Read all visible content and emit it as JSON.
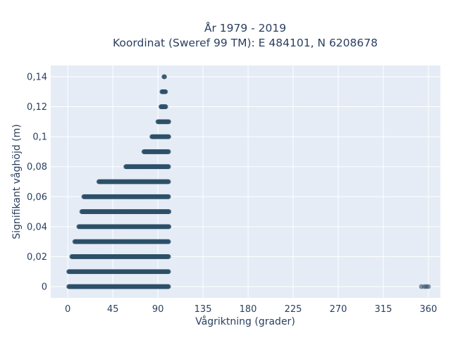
{
  "chart_data": {
    "type": "scatter",
    "title_line1": "År 1979 - 2019",
    "title_line2": "Koordinat (Sweref 99 TM): E 484101, N 6208678",
    "xlabel": "Vågriktning (grader)",
    "ylabel": "Signifikant våghöjd (m)",
    "xlim": [
      -17,
      372
    ],
    "ylim": [
      -0.0075,
      0.1475
    ],
    "x_ticks": [
      0,
      45,
      90,
      135,
      180,
      225,
      270,
      315,
      360
    ],
    "x_tick_labels": [
      "0",
      "45",
      "90",
      "135",
      "180",
      "225",
      "270",
      "315",
      "360"
    ],
    "y_ticks": [
      0,
      0.02,
      0.04,
      0.06,
      0.08,
      0.1,
      0.12,
      0.14
    ],
    "y_tick_labels": [
      "0",
      "0,02",
      "0,04",
      "0,06",
      "0,08",
      "0,1",
      "0,12",
      "0,14"
    ],
    "grid": true,
    "marker_color": "#2e5068",
    "background_color": "#e5ecf6",
    "bands": [
      {
        "y": 0.0,
        "x_min": 1,
        "x_max": 101
      },
      {
        "y": 0.01,
        "x_min": 1,
        "x_max": 101
      },
      {
        "y": 0.02,
        "x_min": 4,
        "x_max": 101
      },
      {
        "y": 0.03,
        "x_min": 7,
        "x_max": 101
      },
      {
        "y": 0.04,
        "x_min": 11,
        "x_max": 101
      },
      {
        "y": 0.05,
        "x_min": 14,
        "x_max": 101
      },
      {
        "y": 0.06,
        "x_min": 16,
        "x_max": 101
      },
      {
        "y": 0.07,
        "x_min": 31,
        "x_max": 101
      },
      {
        "y": 0.08,
        "x_min": 58,
        "x_max": 101
      },
      {
        "y": 0.09,
        "x_min": 76,
        "x_max": 101
      },
      {
        "y": 0.1,
        "x_min": 84,
        "x_max": 101
      },
      {
        "y": 0.11,
        "x_min": 90,
        "x_max": 101
      },
      {
        "y": 0.12,
        "x_min": 93,
        "x_max": 98
      },
      {
        "y": 0.13,
        "x_min": 94,
        "x_max": 98
      },
      {
        "y": 0.14,
        "x_min": 96,
        "x_max": 97
      }
    ],
    "outliers": [
      {
        "x": 353,
        "y": 0
      },
      {
        "x": 356,
        "y": 0
      },
      {
        "x": 358,
        "y": 0
      },
      {
        "x": 360,
        "y": 0
      }
    ]
  }
}
